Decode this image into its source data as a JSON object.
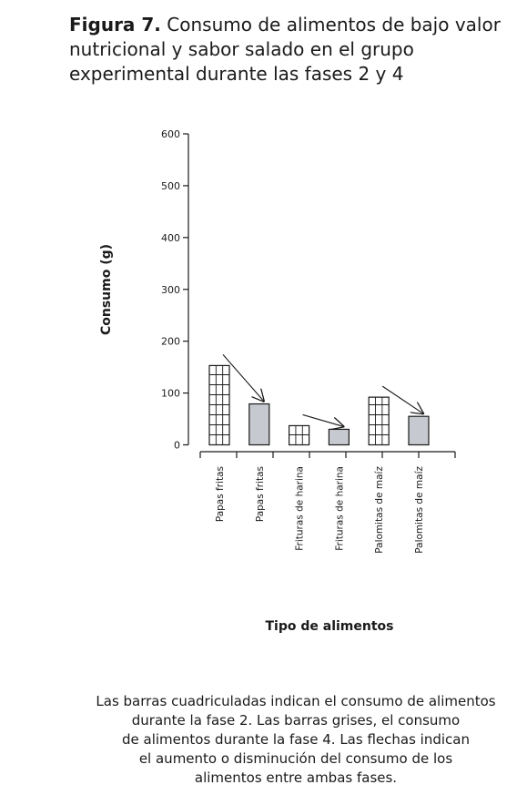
{
  "figure": {
    "label": "Figura 7.",
    "title_text": "Consumo de alimentos de bajo valor nutricional y sabor salado en el grupo experimental durante las fases 2 y 4"
  },
  "chart_data": {
    "type": "bar",
    "categories": [
      "Papas fritas",
      "Papas fritas",
      "Frituras de harina",
      "Frituras de harina",
      "Palomitas de maíz",
      "Palomitas de maíz"
    ],
    "values": [
      153,
      79,
      37,
      30,
      92,
      55
    ],
    "bar_style": [
      "grid",
      "gray",
      "grid",
      "gray",
      "grid",
      "gray"
    ],
    "title": "",
    "xlabel": "Tipo de alimentos",
    "ylabel": "Consumo (g)",
    "ylim": [
      0,
      600
    ],
    "yticks": [
      0,
      100,
      200,
      300,
      400,
      500,
      600
    ],
    "grid": false,
    "arrows": [
      {
        "from": "Papas fritas",
        "to": "Papas fritas"
      },
      {
        "from": "Frituras de harina",
        "to": "Frituras de harina"
      },
      {
        "from": "Palomitas de maíz",
        "to": "Palomitas de maíz"
      }
    ],
    "colors": {
      "gray_bar": "#c6c9cf",
      "grid_bar": "#ffffff",
      "stroke": "#1a1a1a"
    }
  },
  "caption": {
    "lines": [
      "Las barras cuadriculadas indican el consumo de alimentos",
      "durante la fase 2. Las barras grises, el consumo",
      "de alimentos durante la fase 4. Las flechas indican",
      "el aumento o disminución del consumo de los",
      "alimentos entre ambas fases."
    ]
  }
}
